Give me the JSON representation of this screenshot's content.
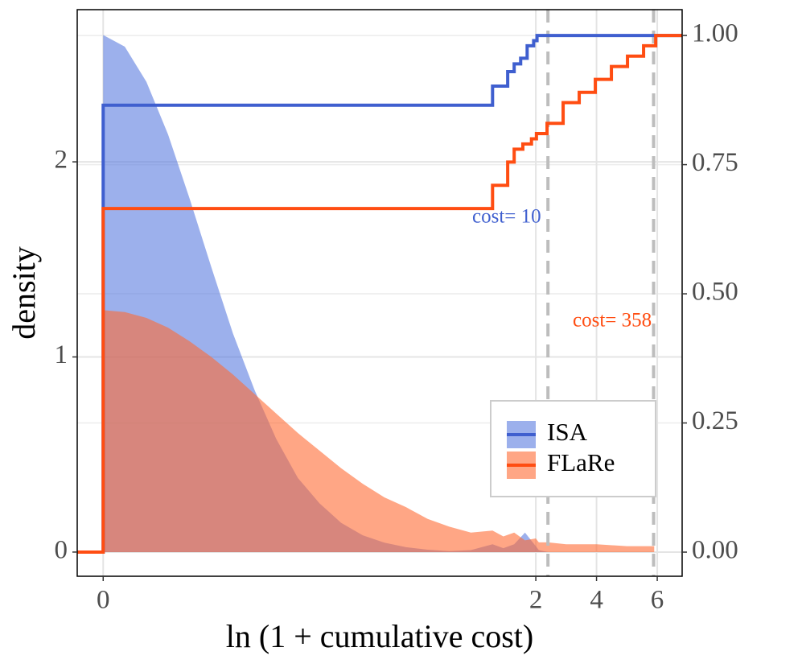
{
  "chart_data": {
    "type": "density",
    "x_label": "ln (1 + cumulative cost)",
    "y_label": "density",
    "x": [
      0,
      0.1,
      0.2,
      0.3,
      0.4,
      0.5,
      0.6,
      0.7,
      0.8,
      0.9,
      1.0,
      1.1,
      1.2,
      1.3,
      1.4,
      1.5,
      1.6,
      1.7,
      1.8,
      1.85,
      1.9,
      1.95,
      2.0,
      2.1,
      2.4,
      3,
      4,
      5,
      5.9
    ],
    "series": [
      {
        "name": "ISA",
        "color": "#3f5fcf",
        "fill": "#5a7be0",
        "values": [
          2.65,
          2.59,
          2.41,
          2.14,
          1.81,
          1.46,
          1.12,
          0.83,
          0.58,
          0.38,
          0.25,
          0.15,
          0.086,
          0.048,
          0.025,
          0.012,
          0.005,
          0.01,
          0.04,
          0.02,
          0.04,
          0.1,
          0.03,
          0.01,
          0,
          null,
          null,
          null,
          null
        ]
      },
      {
        "name": "FLaRe",
        "color": "#ff4d12",
        "fill": "#ff6a33",
        "values": [
          1.24,
          1.23,
          1.2,
          1.15,
          1.08,
          1.0,
          0.91,
          0.81,
          0.71,
          0.61,
          0.52,
          0.43,
          0.35,
          0.28,
          0.23,
          0.17,
          0.13,
          0.1,
          0.11,
          0.08,
          0.1,
          0.06,
          0.07,
          0.05,
          0.05,
          0.04,
          0.04,
          0.03,
          0.03
        ]
      }
    ],
    "ecdf": [
      {
        "x": [
          -0.12,
          0,
          1.8,
          1.87,
          1.9,
          1.93,
          1.96,
          1.99,
          2.04,
          6.82
        ],
        "values": [
          0,
          0.865,
          0.902,
          0.93,
          0.945,
          0.956,
          0.98,
          0.99,
          1.0,
          1.0
        ],
        "axis": "y2"
      },
      {
        "x": [
          -0.12,
          0,
          1.8,
          1.87,
          1.9,
          1.94,
          1.98,
          2.02,
          2.37,
          2.9,
          3.43,
          3.96,
          4.49,
          5.02,
          5.55,
          5.95,
          6.82
        ],
        "values": [
          0,
          0.665,
          0.71,
          0.755,
          0.78,
          0.79,
          0.8,
          0.81,
          0.83,
          0.87,
          0.89,
          0.915,
          0.94,
          0.96,
          0.98,
          1.0,
          1.0
        ],
        "axis": "y2"
      }
    ],
    "vlines": [
      2.4,
      5.88
    ],
    "annotations": [
      {
        "text": "cost= 10",
        "color": "#3f5fcf"
      },
      {
        "text": "cost= 358",
        "color": "#ff4d12"
      }
    ],
    "xlim": [
      -0.12,
      6.82
    ],
    "xticks": [
      0,
      2,
      4,
      6
    ],
    "ylim": [
      -0.124,
      2.78
    ],
    "yticks": [
      0,
      1,
      2
    ],
    "y2lim": [
      -0.0467,
      1.05
    ],
    "y2ticks": [
      {
        "value": 0,
        "label": "0.00"
      },
      {
        "value": 0.25,
        "label": "0.25"
      },
      {
        "value": 0.5,
        "label": "0.50"
      },
      {
        "value": 0.75,
        "label": "0.75"
      },
      {
        "value": 1,
        "label": "1.00"
      }
    ],
    "grid": true
  }
}
